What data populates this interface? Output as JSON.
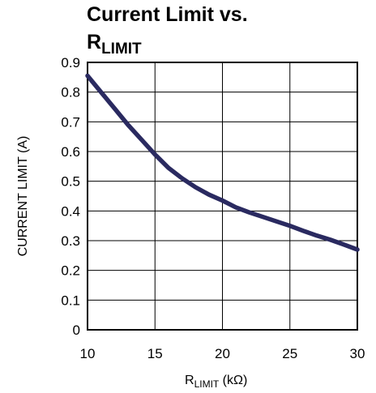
{
  "chart_data": {
    "type": "line",
    "title_line1": "Current Limit vs.",
    "title_line2_main": "R",
    "title_line2_sub": "LIMIT",
    "xlabel_main": "R",
    "xlabel_sub": "LIMIT",
    "xlabel_unit": " (kΩ)",
    "ylabel": "CURRENT LIMIT (A)",
    "xlim": [
      10,
      30
    ],
    "ylim": [
      0,
      0.9
    ],
    "x_ticks": [
      "10",
      "15",
      "20",
      "25",
      "30"
    ],
    "y_ticks": [
      "0",
      "0.1",
      "0.2",
      "0.3",
      "0.4",
      "0.5",
      "0.6",
      "0.7",
      "0.8",
      "0.9"
    ],
    "grid": true,
    "line_color": "#2a2a60",
    "series": [
      {
        "x": [
          10,
          11,
          12,
          13,
          14,
          15,
          16,
          17,
          18,
          19,
          20,
          21,
          22,
          23,
          24,
          25,
          26,
          27,
          28,
          29,
          30
        ],
        "y": [
          0.855,
          0.8,
          0.745,
          0.69,
          0.64,
          0.59,
          0.545,
          0.51,
          0.48,
          0.455,
          0.435,
          0.412,
          0.395,
          0.38,
          0.365,
          0.35,
          0.333,
          0.317,
          0.303,
          0.287,
          0.27
        ]
      }
    ]
  }
}
